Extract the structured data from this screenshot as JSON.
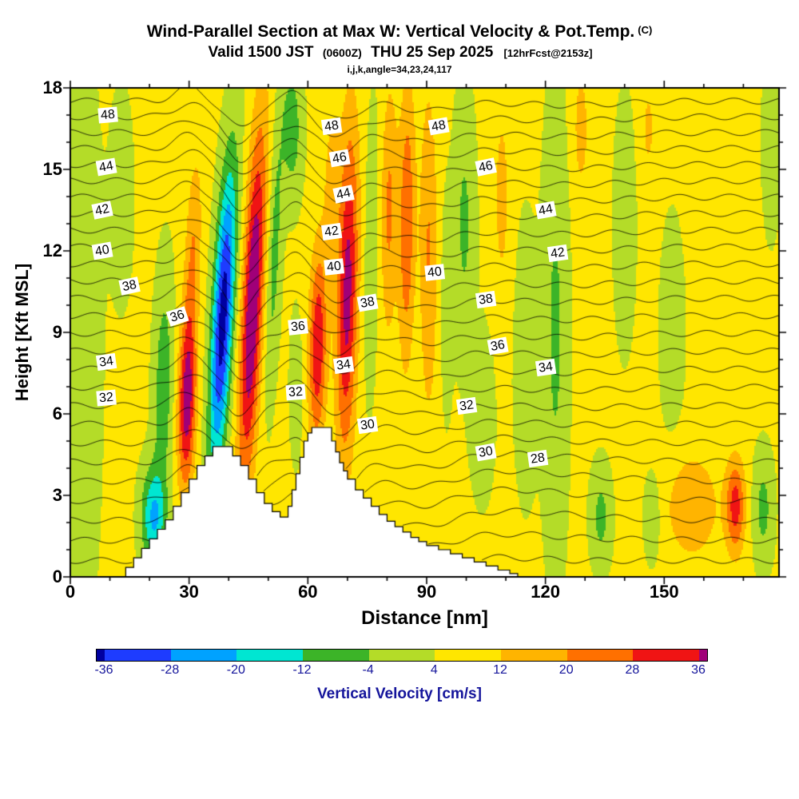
{
  "header": {
    "title": "Wind-Parallel Section at Max W: Vertical Velocity & Pot.Temp.",
    "title_unit": "(C)",
    "valid_line": {
      "prefix": "Valid 1500 JST",
      "zulu": "(0600Z)",
      "date": "THU 25 Sep 2025",
      "fcst": "[12hrFcst@2153z]"
    },
    "index_line": "i,j,k,angle=34,23,24,117"
  },
  "axes": {
    "x_label": "Distance [nm]",
    "y_label": "Height [Kft MSL]",
    "x_range": [
      0,
      179
    ],
    "y_range": [
      0,
      18
    ],
    "x_ticks": [
      0,
      30,
      60,
      90,
      120,
      150
    ],
    "y_ticks": [
      0,
      3,
      6,
      9,
      12,
      15,
      18
    ],
    "x_minor_step": 10,
    "y_minor_step": 1
  },
  "colorbar": {
    "label": "Vertical Velocity [cm/s]",
    "tick_labels": [
      "-36",
      "-28",
      "-20",
      "-12",
      "-4",
      "4",
      "12",
      "20",
      "28",
      "36"
    ],
    "colors": [
      "#0000a0",
      "#1e3cff",
      "#00a2ff",
      "#00e6d2",
      "#3cb428",
      "#b4dc28",
      "#ffe600",
      "#ffb400",
      "#ff7000",
      "#f01414",
      "#a00078"
    ],
    "text_color": "#14149b"
  },
  "chart_data": {
    "type": "heatmap",
    "title": "Wind-Parallel Section at Max W: Vertical Velocity & Pot.Temp. (C)",
    "subtitle": "Valid 1500 JST (0600Z) THU 25 Sep 2025 [12hrFcst@2153z]",
    "xlabel": "Distance [nm]",
    "ylabel": "Height [Kft MSL]",
    "xlim": [
      0,
      179
    ],
    "ylim": [
      0,
      18
    ],
    "shaded_field": {
      "name": "Vertical Velocity",
      "units": "cm/s",
      "levels": [
        -36,
        -28,
        -20,
        -12,
        -4,
        4,
        12,
        20,
        28,
        36
      ],
      "background": 5.5,
      "features": [
        {
          "x": 2,
          "y": 9,
          "sx": 5,
          "sy": 10,
          "amp": -9,
          "tilt": 0
        },
        {
          "x": 13,
          "y": 14,
          "sx": 3,
          "sy": 4,
          "amp": -5,
          "tilt": 0
        },
        {
          "x": 21,
          "y": 2.2,
          "sx": 3,
          "sy": 1.8,
          "amp": -26,
          "tilt": 0
        },
        {
          "x": 23.5,
          "y": 7,
          "sx": 2.4,
          "sy": 4,
          "amp": -15,
          "tilt": 0.1
        },
        {
          "x": 29.5,
          "y": 6.5,
          "sx": 2.2,
          "sy": 3.2,
          "amp": 36,
          "tilt": 0.15
        },
        {
          "x": 31,
          "y": 12,
          "sx": 2,
          "sy": 3.5,
          "amp": 14,
          "tilt": 0.25
        },
        {
          "x": 38.5,
          "y": 9.5,
          "sx": 2.6,
          "sy": 5.5,
          "amp": -46,
          "tilt": 0.35
        },
        {
          "x": 46,
          "y": 10,
          "sx": 2.6,
          "sy": 6.5,
          "amp": 40,
          "tilt": 0.3
        },
        {
          "x": 51.5,
          "y": 12,
          "sx": 1.8,
          "sy": 5,
          "amp": -13,
          "tilt": 0.25
        },
        {
          "x": 56,
          "y": 16.5,
          "sx": 2.5,
          "sy": 2.5,
          "amp": -14,
          "tilt": 0
        },
        {
          "x": 57,
          "y": 7,
          "sx": 1.5,
          "sy": 2.5,
          "amp": -8,
          "tilt": 0
        },
        {
          "x": 62.5,
          "y": 8.5,
          "sx": 2.2,
          "sy": 3.5,
          "amp": 30,
          "tilt": 0.1
        },
        {
          "x": 66,
          "y": 14.5,
          "sx": 2,
          "sy": 3,
          "amp": 10,
          "tilt": 0.1
        },
        {
          "x": 70,
          "y": 10.5,
          "sx": 2.6,
          "sy": 6,
          "amp": 34,
          "tilt": 0.12
        },
        {
          "x": 76,
          "y": 12,
          "sx": 1.8,
          "sy": 5,
          "amp": -8,
          "tilt": 0.1
        },
        {
          "x": 80.5,
          "y": 13.5,
          "sx": 2,
          "sy": 4.5,
          "amp": 16,
          "tilt": 0.05
        },
        {
          "x": 85,
          "y": 13,
          "sx": 2,
          "sy": 5,
          "amp": 22,
          "tilt": 0.05
        },
        {
          "x": 90.5,
          "y": 12,
          "sx": 2.2,
          "sy": 6,
          "amp": 15,
          "tilt": 0
        },
        {
          "x": 95,
          "y": 10,
          "sx": 1.6,
          "sy": 4,
          "amp": -6,
          "tilt": 0
        },
        {
          "x": 99.5,
          "y": 13,
          "sx": 2.6,
          "sy": 4.5,
          "amp": -11,
          "tilt": 0
        },
        {
          "x": 104,
          "y": 6,
          "sx": 3,
          "sy": 3,
          "amp": -7,
          "tilt": 0
        },
        {
          "x": 109,
          "y": 14,
          "sx": 2.2,
          "sy": 4,
          "amp": 9,
          "tilt": 0
        },
        {
          "x": 115,
          "y": 8,
          "sx": 3,
          "sy": 5,
          "amp": -6,
          "tilt": 0
        },
        {
          "x": 122.5,
          "y": 9,
          "sx": 3,
          "sy": 8,
          "amp": -11,
          "tilt": 0
        },
        {
          "x": 129,
          "y": 16.5,
          "sx": 2,
          "sy": 2.5,
          "amp": 10,
          "tilt": 0
        },
        {
          "x": 134,
          "y": 2.2,
          "sx": 2.5,
          "sy": 1.8,
          "amp": -12,
          "tilt": 0
        },
        {
          "x": 140,
          "y": 13,
          "sx": 2.4,
          "sy": 4,
          "amp": -9,
          "tilt": 0
        },
        {
          "x": 146,
          "y": 16.5,
          "sx": 2,
          "sy": 2,
          "amp": 8,
          "tilt": 0
        },
        {
          "x": 147,
          "y": 2.2,
          "sx": 2,
          "sy": 1.5,
          "amp": -10,
          "tilt": 0
        },
        {
          "x": 152,
          "y": 9,
          "sx": 3,
          "sy": 4,
          "amp": -6,
          "tilt": 0
        },
        {
          "x": 157,
          "y": 2.6,
          "sx": 7,
          "sy": 2,
          "amp": 13,
          "tilt": 0
        },
        {
          "x": 168,
          "y": 2.6,
          "sx": 2.4,
          "sy": 1.7,
          "amp": 26,
          "tilt": 0
        },
        {
          "x": 175,
          "y": 2.5,
          "sx": 2.5,
          "sy": 2,
          "amp": -12,
          "tilt": 0
        },
        {
          "x": 177,
          "y": 16,
          "sx": 2,
          "sy": 3,
          "amp": -9,
          "tilt": 0
        }
      ]
    },
    "contour_field": {
      "name": "Potential Temperature",
      "units": "C",
      "interval": 1,
      "levels_min": 24,
      "levels_max": 50,
      "labeled_levels": [
        28,
        30,
        32,
        34,
        36,
        38,
        40,
        42,
        44,
        46,
        48
      ],
      "theta0": 23.2,
      "a": 1.32,
      "b": 0.012,
      "ripple": {
        "amp": 0.11,
        "k": 0.5
      },
      "displacement_features": [
        {
          "x": 30,
          "sx": 5,
          "amp": 0.5
        },
        {
          "x": 43,
          "sx": 5,
          "amp": -1.0
        },
        {
          "x": 57,
          "sx": 3.5,
          "amp": 0.35
        },
        {
          "x": 68,
          "sx": 6,
          "amp": -0.7
        },
        {
          "x": 90,
          "sx": 10,
          "amp": -0.35
        },
        {
          "x": 65,
          "sx": 8,
          "amp": -0.5,
          "yc": 5,
          "sy": 2.5
        },
        {
          "x": 115,
          "sx": 25,
          "amp": 0.5,
          "yc": 3,
          "sy": 2.5
        },
        {
          "x": 125,
          "sx": 18,
          "amp": -0.15
        }
      ]
    },
    "terrain_profile_kft": [
      [
        13,
        0
      ],
      [
        14,
        0.35
      ],
      [
        16,
        0.7
      ],
      [
        18,
        1.05
      ],
      [
        20,
        1.4
      ],
      [
        22,
        1.75
      ],
      [
        24,
        2.1
      ],
      [
        26,
        2.6
      ],
      [
        28,
        3.1
      ],
      [
        30,
        3.6
      ],
      [
        32,
        4.1
      ],
      [
        34,
        4.45
      ],
      [
        36,
        4.8
      ],
      [
        41,
        4.45
      ],
      [
        43,
        4.1
      ],
      [
        45,
        3.6
      ],
      [
        47,
        3.1
      ],
      [
        49,
        2.7
      ],
      [
        51,
        2.4
      ],
      [
        53,
        2.2
      ],
      [
        55,
        2.6
      ],
      [
        56,
        3.2
      ],
      [
        57,
        3.8
      ],
      [
        58,
        4.4
      ],
      [
        59,
        5.0
      ],
      [
        60,
        5.3
      ],
      [
        61,
        5.5
      ],
      [
        66,
        5.0
      ],
      [
        67,
        4.6
      ],
      [
        68,
        4.2
      ],
      [
        69,
        3.9
      ],
      [
        70,
        3.6
      ],
      [
        72,
        3.2
      ],
      [
        74,
        2.9
      ],
      [
        76,
        2.6
      ],
      [
        78,
        2.3
      ],
      [
        80,
        2.05
      ],
      [
        82,
        1.85
      ],
      [
        84,
        1.65
      ],
      [
        86,
        1.45
      ],
      [
        88,
        1.3
      ],
      [
        90,
        1.15
      ],
      [
        93,
        1.0
      ],
      [
        96,
        0.85
      ],
      [
        99,
        0.7
      ],
      [
        102,
        0.55
      ],
      [
        105,
        0.4
      ],
      [
        108,
        0.25
      ],
      [
        111,
        0.12
      ],
      [
        113,
        0
      ]
    ],
    "contour_labels": [
      {
        "v": 48,
        "x": 9.5,
        "y": 17.0,
        "r": -5
      },
      {
        "v": 44,
        "x": 9,
        "y": 15.1,
        "r": -10
      },
      {
        "v": 42,
        "x": 8,
        "y": 13.5,
        "r": -12
      },
      {
        "v": 40,
        "x": 8,
        "y": 12.0,
        "r": -10
      },
      {
        "v": 38,
        "x": 15,
        "y": 10.7,
        "r": -12
      },
      {
        "v": 36,
        "x": 27,
        "y": 9.6,
        "r": -18
      },
      {
        "v": 34,
        "x": 9,
        "y": 7.9,
        "r": -8
      },
      {
        "v": 32,
        "x": 9,
        "y": 6.6,
        "r": -5
      },
      {
        "v": 48,
        "x": 66,
        "y": 16.6,
        "r": -8
      },
      {
        "v": 46,
        "x": 68,
        "y": 15.4,
        "r": -10
      },
      {
        "v": 44,
        "x": 69,
        "y": 14.1,
        "r": -12
      },
      {
        "v": 42,
        "x": 66,
        "y": 12.7,
        "r": -8
      },
      {
        "v": 40,
        "x": 66.5,
        "y": 11.4,
        "r": -6
      },
      {
        "v": 38,
        "x": 75,
        "y": 10.1,
        "r": -10
      },
      {
        "v": 36,
        "x": 57.5,
        "y": 9.2,
        "r": -6
      },
      {
        "v": 34,
        "x": 69,
        "y": 7.8,
        "r": -8
      },
      {
        "v": 32,
        "x": 57,
        "y": 6.8,
        "r": -4
      },
      {
        "v": 30,
        "x": 75,
        "y": 5.6,
        "r": -8
      },
      {
        "v": 48,
        "x": 93,
        "y": 16.6,
        "r": -10
      },
      {
        "v": 46,
        "x": 105,
        "y": 15.1,
        "r": -12
      },
      {
        "v": 44,
        "x": 120,
        "y": 13.5,
        "r": -10
      },
      {
        "v": 42,
        "x": 123,
        "y": 11.9,
        "r": -8
      },
      {
        "v": 40,
        "x": 92,
        "y": 11.2,
        "r": -6
      },
      {
        "v": 38,
        "x": 105,
        "y": 10.2,
        "r": -8
      },
      {
        "v": 36,
        "x": 108,
        "y": 8.5,
        "r": -10
      },
      {
        "v": 34,
        "x": 120,
        "y": 7.7,
        "r": -8
      },
      {
        "v": 32,
        "x": 100,
        "y": 6.3,
        "r": -8
      },
      {
        "v": 30,
        "x": 105,
        "y": 4.6,
        "r": -10
      },
      {
        "v": 28,
        "x": 118,
        "y": 4.35,
        "r": -8
      }
    ]
  }
}
